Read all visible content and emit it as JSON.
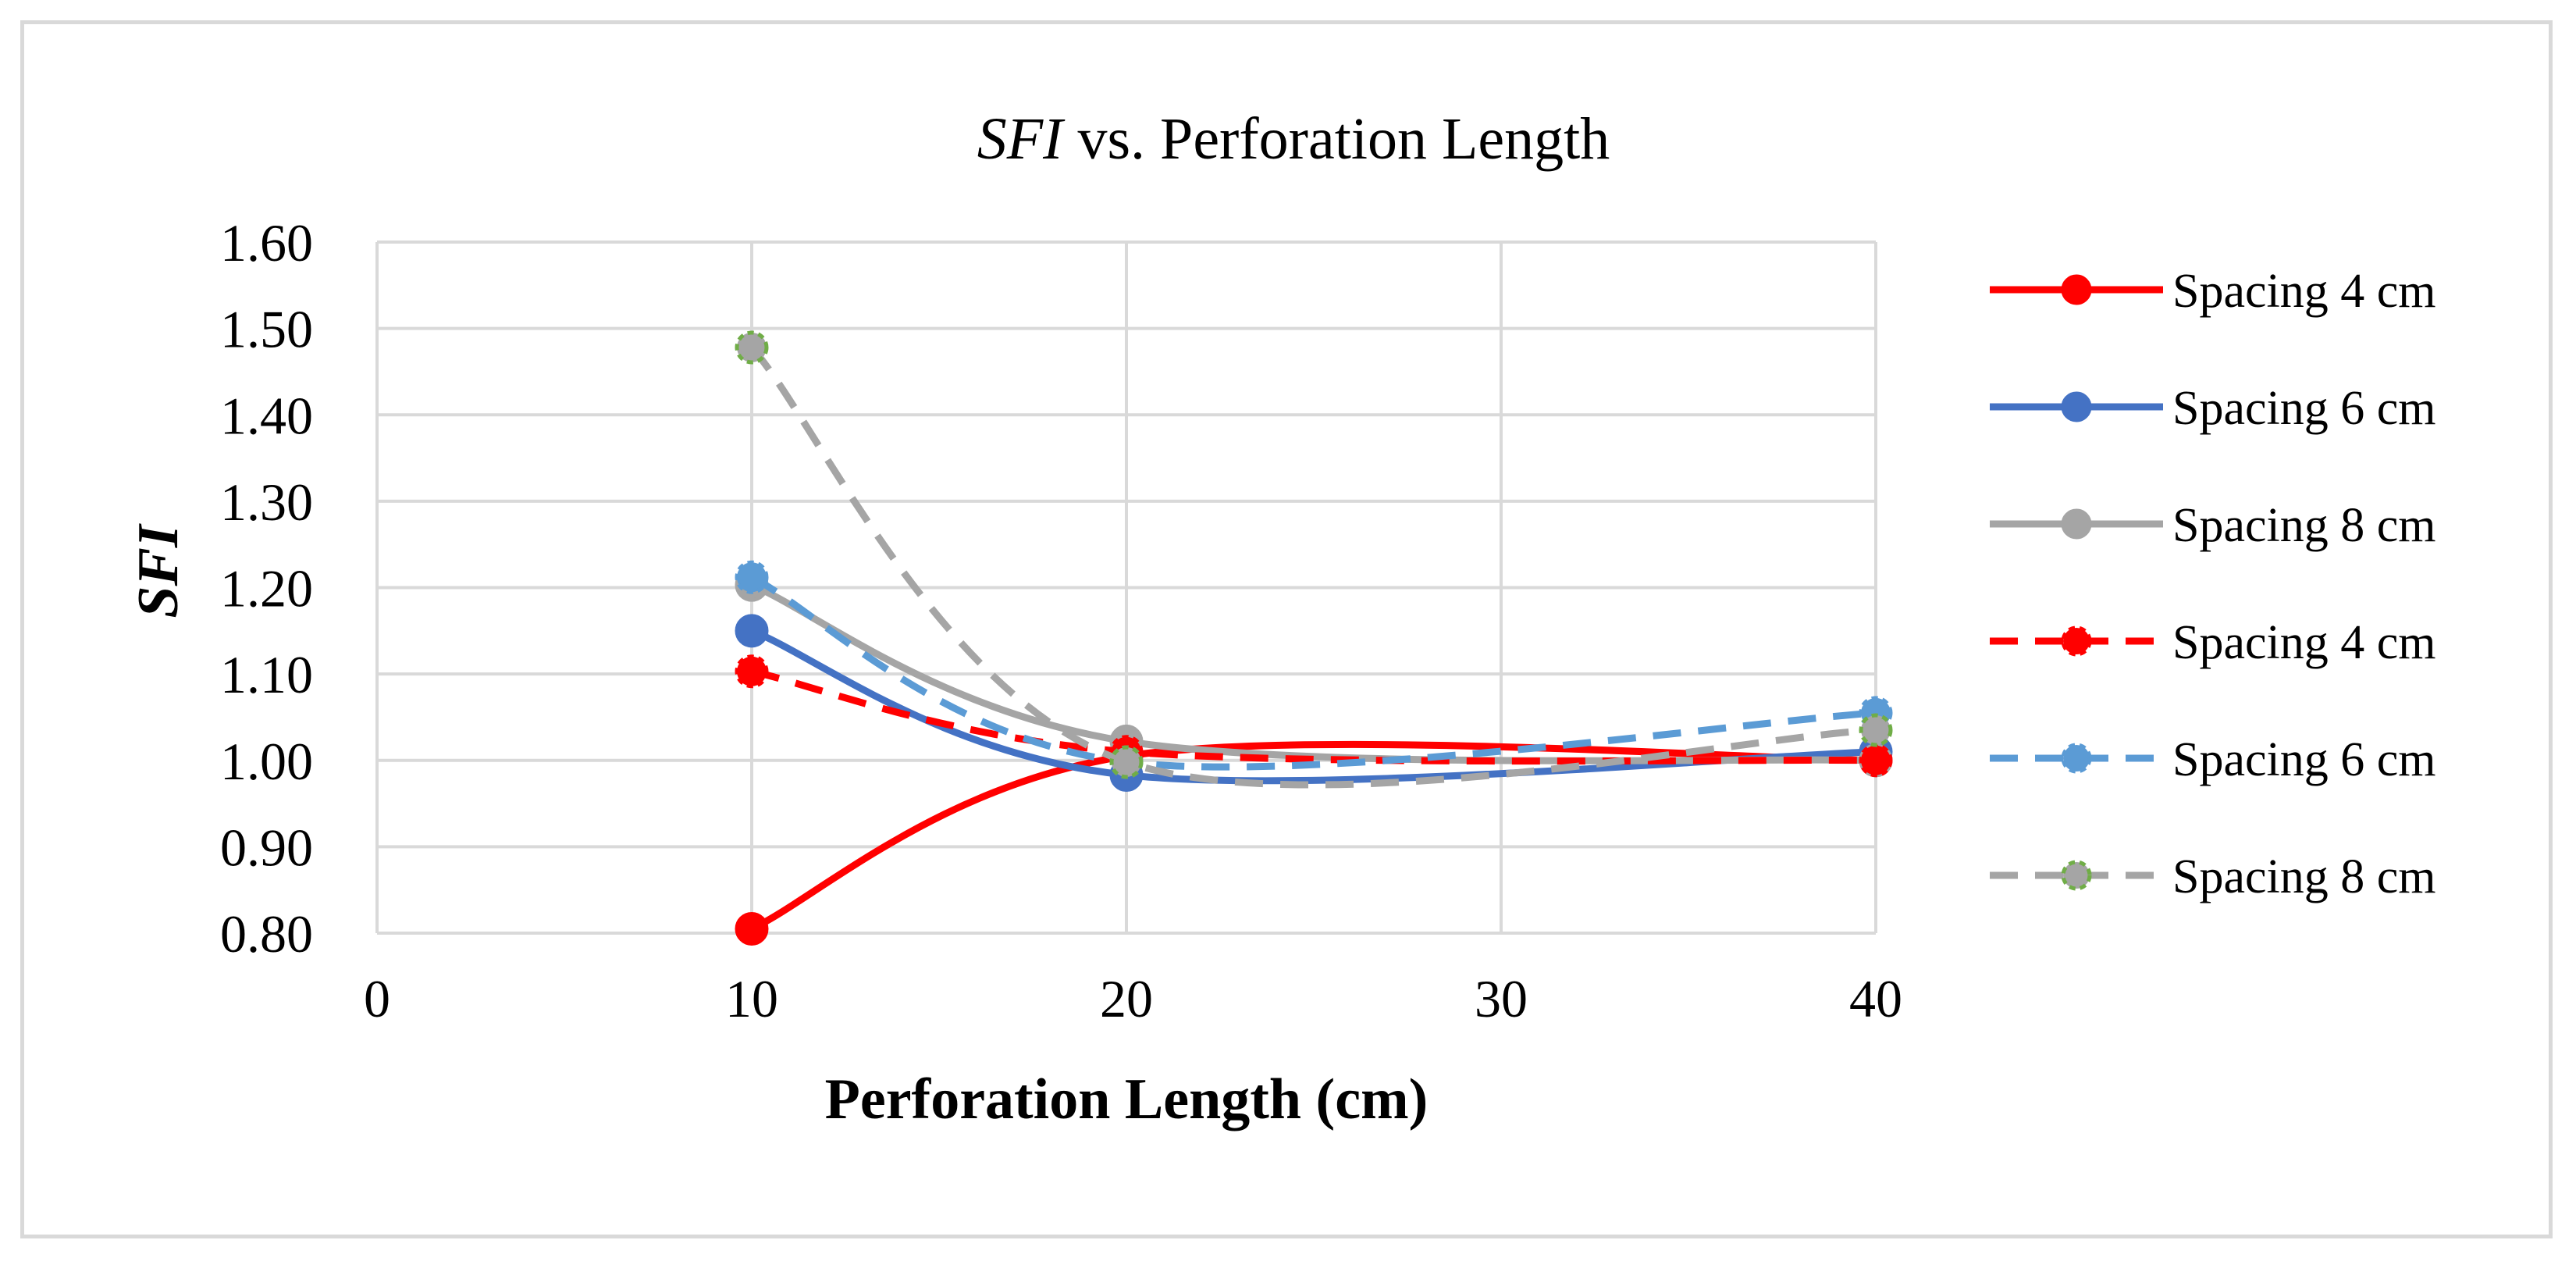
{
  "chart_data": {
    "type": "line",
    "title_italic": "SFI",
    "title_rest": " vs. Perforation Length",
    "xlabel": "Perforation Length (cm)",
    "ylabel": "SFI",
    "xlim": [
      0,
      40
    ],
    "ylim": [
      0.8,
      1.6
    ],
    "x_ticks": [
      "0",
      "10",
      "20",
      "30",
      "40"
    ],
    "x_tick_values": [
      0,
      10,
      20,
      30,
      40
    ],
    "y_ticks": [
      "0.80",
      "0.90",
      "1.00",
      "1.10",
      "1.20",
      "1.30",
      "1.40",
      "1.50",
      "1.60"
    ],
    "y_tick_values": [
      0.8,
      0.9,
      1.0,
      1.1,
      1.2,
      1.3,
      1.4,
      1.5,
      1.6
    ],
    "grid": true,
    "legend_position": "right",
    "x": [
      10,
      20,
      40
    ],
    "series": [
      {
        "name": "Spacing 4 cm",
        "values": [
          0.805,
          1.005,
          1.0
        ],
        "color": "#ff0000",
        "marker_color": "#ff0000",
        "dashed": false
      },
      {
        "name": "Spacing 6 cm",
        "values": [
          1.15,
          0.983,
          1.01
        ],
        "color": "#4472c4",
        "marker_color": "#4472c4",
        "dashed": false
      },
      {
        "name": "Spacing 8 cm",
        "values": [
          1.203,
          1.022,
          1.0
        ],
        "color": "#a5a5a5",
        "marker_color": "#a5a5a5",
        "dashed": false
      },
      {
        "name": "Spacing 4 cm",
        "values": [
          1.103,
          1.01,
          1.0
        ],
        "color": "#ff0000",
        "marker_color": "#ff0000",
        "dashed": true
      },
      {
        "name": "Spacing 6 cm",
        "values": [
          1.212,
          0.998,
          1.055
        ],
        "color": "#5b9bd5",
        "marker_color": "#5b9bd5",
        "dashed": true
      },
      {
        "name": "Spacing 8 cm",
        "values": [
          1.478,
          0.998,
          1.035
        ],
        "color": "#a5a5a5",
        "marker_color": "#70ad47",
        "dashed": true
      }
    ]
  }
}
